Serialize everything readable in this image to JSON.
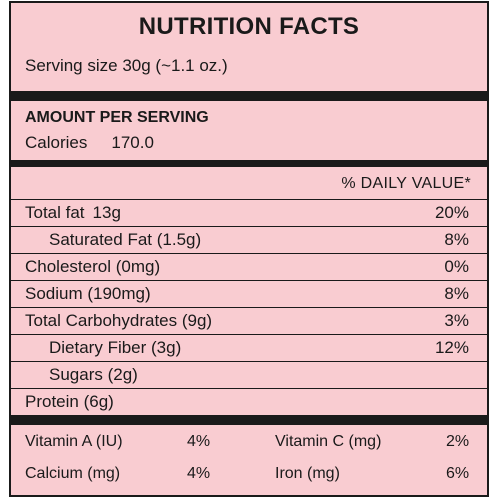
{
  "title": "NUTRITION FACTS",
  "serving_size": "Serving size 30g (~1.1 oz.)",
  "amount_per_serving": "AMOUNT PER SERVING",
  "calories": {
    "label": "Calories",
    "value": "170.0"
  },
  "daily_value_header": "% DAILY VALUE*",
  "nutrients": [
    {
      "name": "Total fat",
      "amount": "13g",
      "percent": "20%"
    },
    {
      "name": "Saturated Fat (1.5g)",
      "amount": "",
      "percent": "8%"
    },
    {
      "name": "Cholesterol (0mg)",
      "amount": "",
      "percent": "0%"
    },
    {
      "name": "Sodium (190mg)",
      "amount": "",
      "percent": "8%"
    },
    {
      "name": "Total Carbohydrates (9g)",
      "amount": "",
      "percent": "3%"
    },
    {
      "name": "Dietary Fiber (3g)",
      "amount": "",
      "percent": "12%"
    },
    {
      "name": "Sugars (2g)",
      "amount": "",
      "percent": ""
    },
    {
      "name": "Protein (6g)",
      "amount": "",
      "percent": ""
    }
  ],
  "vitamins": [
    {
      "name": "Vitamin A (IU)",
      "percent": "4%"
    },
    {
      "name": "Vitamin C (mg)",
      "percent": "2%"
    },
    {
      "name": "Calcium (mg)",
      "percent": "4%"
    },
    {
      "name": "Iron (mg)",
      "percent": "6%"
    }
  ],
  "colors": {
    "background": "#f9ccd1",
    "text": "#1a1a1a"
  }
}
